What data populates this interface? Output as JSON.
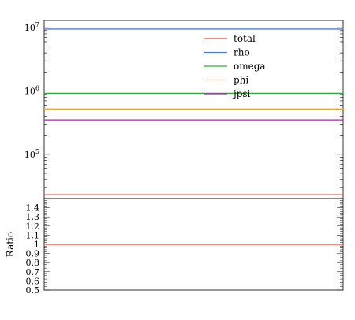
{
  "chart_data": [
    {
      "type": "line",
      "panel": "main",
      "yscale": "log",
      "ylim": [
        20000,
        13000000
      ],
      "xlim": [
        0,
        1
      ],
      "ytick_labels": [
        "10^7",
        "10^6",
        "10^5"
      ],
      "ytick_values": [
        10000000,
        1000000,
        100000
      ],
      "legend_position": "top-center",
      "series": [
        {
          "name": "total",
          "color": "#e8432f",
          "y": 23000
        },
        {
          "name": "rho",
          "color": "#4a7fd4",
          "y": 9500000
        },
        {
          "name": "omega",
          "color": "#2eaa3c",
          "y": 920000
        },
        {
          "name": "phi",
          "color": "#f5a623",
          "y": 520000
        },
        {
          "name": "jpsi",
          "color": "#b515c8",
          "y": 350000
        }
      ]
    },
    {
      "type": "line",
      "panel": "ratio",
      "ylabel": "Ratio",
      "ylim": [
        0.5,
        1.5
      ],
      "ytick_labels": [
        "1.4",
        "1.3",
        "1.2",
        "1.1",
        "1",
        "0.9",
        "0.8",
        "0.7",
        "0.6",
        "0.5"
      ],
      "ytick_values": [
        1.4,
        1.3,
        1.2,
        1.1,
        1.0,
        0.9,
        0.8,
        0.7,
        0.6,
        0.5
      ],
      "series": [
        {
          "color": "#e8432f",
          "y": 1.0
        }
      ]
    }
  ]
}
